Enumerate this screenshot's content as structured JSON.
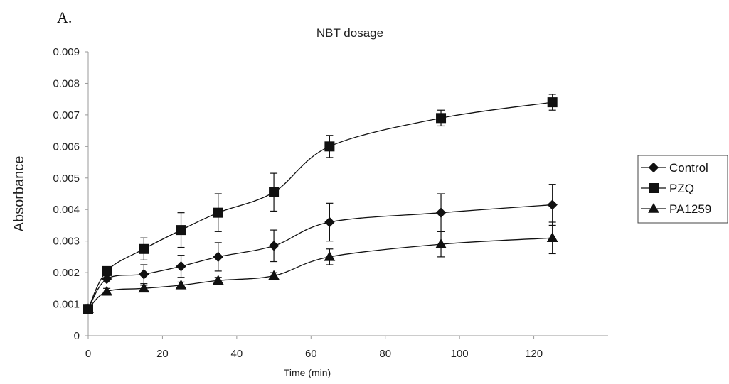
{
  "panel_label": "A.",
  "chart_data": {
    "type": "line",
    "title": "NBT dosage",
    "xlabel": "Time (min)",
    "ylabel": "Absorbance",
    "xlim": [
      0,
      140
    ],
    "ylim": [
      0,
      0.009
    ],
    "x_ticks": [
      "0",
      "20",
      "40",
      "60",
      "80",
      "100",
      "120"
    ],
    "y_ticks": [
      "0",
      "0.001",
      "0.002",
      "0.003",
      "0.004",
      "0.005",
      "0.006",
      "0.007",
      "0.008",
      "0.009"
    ],
    "grid": false,
    "legend_position": "right",
    "x": [
      0,
      5,
      15,
      25,
      35,
      50,
      65,
      95,
      125
    ],
    "series": [
      {
        "name": "Control",
        "marker": "diamond",
        "values": [
          0.00085,
          0.0018,
          0.00195,
          0.0022,
          0.0025,
          0.00285,
          0.0036,
          0.0039,
          0.00415
        ],
        "errors": [
          0.0001,
          0.0001,
          0.0003,
          0.00035,
          0.00045,
          0.0005,
          0.0006,
          0.0006,
          0.00065
        ]
      },
      {
        "name": "PZQ",
        "marker": "square",
        "values": [
          0.00085,
          0.00205,
          0.00275,
          0.00335,
          0.0039,
          0.00455,
          0.006,
          0.0069,
          0.0074
        ],
        "errors": [
          0.0001,
          0.0001,
          0.00035,
          0.00055,
          0.0006,
          0.0006,
          0.00035,
          0.00025,
          0.00025
        ]
      },
      {
        "name": "PA1259",
        "marker": "triangle",
        "values": [
          0.00085,
          0.0014,
          0.0015,
          0.0016,
          0.00175,
          0.0019,
          0.0025,
          0.0029,
          0.0031
        ],
        "errors": [
          0.0001,
          0.0001,
          0.0001,
          0.0001,
          0.0001,
          0.0001,
          0.00025,
          0.0004,
          0.0005
        ]
      }
    ]
  }
}
